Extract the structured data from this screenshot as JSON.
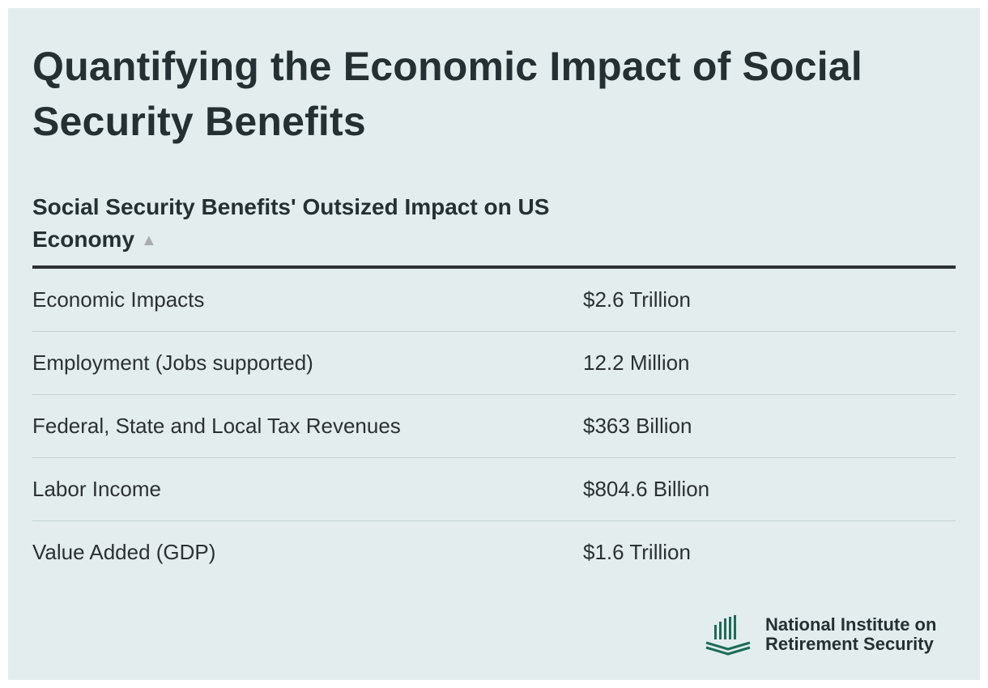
{
  "title": "Quantifying the Economic Impact of Social Security Benefits",
  "table": {
    "header": "Social Security Benefits' Outsized Impact on US Economy",
    "sort_indicator": "▲",
    "rows": [
      {
        "label": "Economic Impacts",
        "value": "$2.6 Trillion"
      },
      {
        "label": "Employment (Jobs supported)",
        "value": "12.2 Million"
      },
      {
        "label": "Federal, State and Local Tax Revenues",
        "value": "$363 Billion"
      },
      {
        "label": "Labor Income",
        "value": "$804.6 Billion"
      },
      {
        "label": "Value Added (GDP)",
        "value": "$1.6 Trillion"
      }
    ]
  },
  "logo": {
    "line1": "National Institute on",
    "line2": "Retirement Security",
    "icon": "columns-icon",
    "color": "#1d6b5a"
  },
  "colors": {
    "background": "#e3eded",
    "text": "#253033",
    "rule": "#2b3133",
    "divider": "#c5d1d1"
  },
  "chart_data": {
    "type": "table",
    "title": "Quantifying the Economic Impact of Social Security Benefits",
    "columns": [
      "Social Security Benefits' Outsized Impact on US Economy",
      ""
    ],
    "rows": [
      [
        "Economic Impacts",
        "$2.6 Trillion"
      ],
      [
        "Employment (Jobs supported)",
        "12.2 Million"
      ],
      [
        "Federal, State and Local Tax Revenues",
        "$363 Billion"
      ],
      [
        "Labor Income",
        "$804.6 Billion"
      ],
      [
        "Value Added (GDP)",
        "$1.6 Trillion"
      ]
    ]
  }
}
